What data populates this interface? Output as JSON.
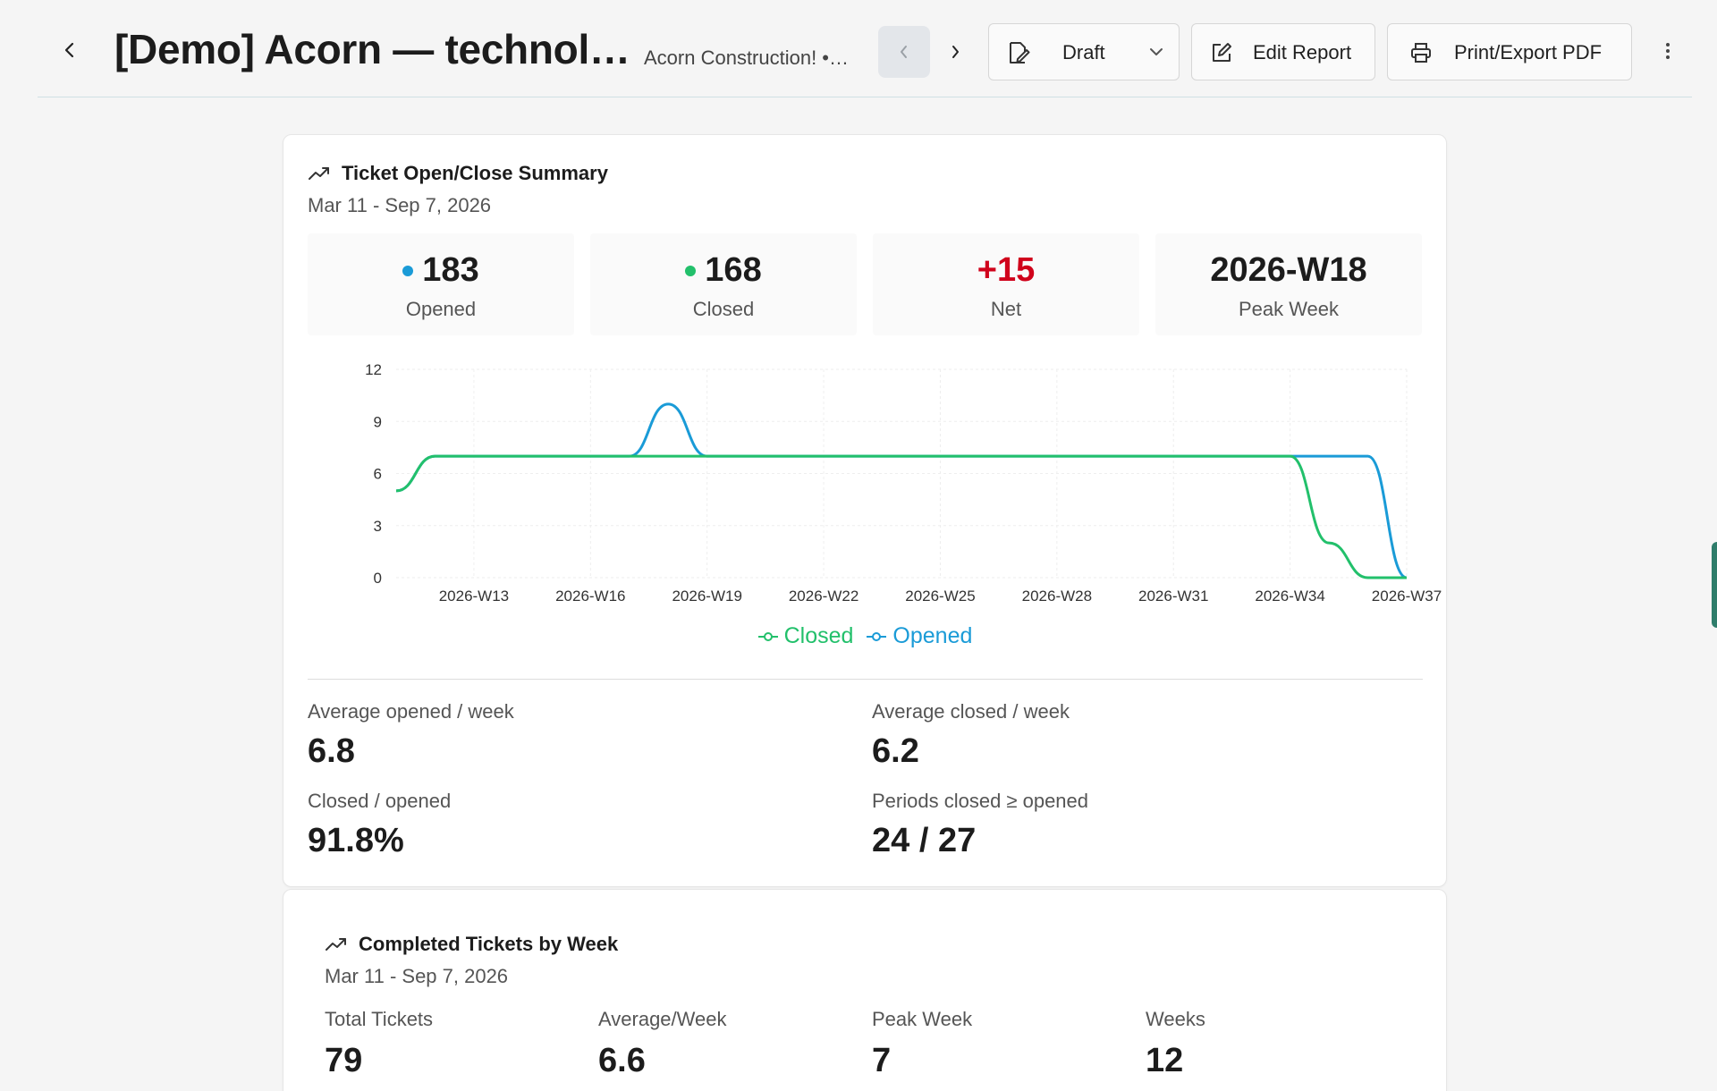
{
  "header": {
    "title": "[Demo] Acorn — technol…",
    "subtitle": "Acorn Construction! •…",
    "status_label": "Draft",
    "edit_label": "Edit Report",
    "print_label": "Print/Export PDF"
  },
  "summary": {
    "title": "Ticket Open/Close Summary",
    "date_range": "Mar 11 - Sep 7, 2026",
    "kpis": [
      {
        "value": "183",
        "label": "Opened",
        "dot_color": "#1a9bd7"
      },
      {
        "value": "168",
        "label": "Closed",
        "dot_color": "#22c06b"
      },
      {
        "value": "+15",
        "label": "Net",
        "color": "#d0021b"
      },
      {
        "value": "2026-W18",
        "label": "Peak Week"
      }
    ],
    "legend": [
      {
        "name": "Closed",
        "color": "#22c06b"
      },
      {
        "name": "Opened",
        "color": "#1a9bd7"
      }
    ],
    "stats": {
      "avg_opened_label": "Average opened / week",
      "avg_opened_value": "6.8",
      "avg_closed_label": "Average closed / week",
      "avg_closed_value": "6.2",
      "ratio_label": "Closed / opened",
      "ratio_value": "91.8%",
      "periods_label": "Periods closed ≥ opened",
      "periods_value": "24 / 27"
    }
  },
  "chart_data": {
    "type": "line",
    "x": [
      "2026-W11",
      "2026-W12",
      "2026-W13",
      "2026-W14",
      "2026-W15",
      "2026-W16",
      "2026-W17",
      "2026-W18",
      "2026-W19",
      "2026-W20",
      "2026-W21",
      "2026-W22",
      "2026-W23",
      "2026-W24",
      "2026-W25",
      "2026-W26",
      "2026-W27",
      "2026-W28",
      "2026-W29",
      "2026-W30",
      "2026-W31",
      "2026-W32",
      "2026-W33",
      "2026-W34",
      "2026-W35",
      "2026-W36",
      "2026-W37"
    ],
    "x_tick_labels": [
      "2026-W13",
      "2026-W16",
      "2026-W19",
      "2026-W22",
      "2026-W25",
      "2026-W28",
      "2026-W31",
      "2026-W34",
      "2026-W37"
    ],
    "series": [
      {
        "name": "Closed",
        "color": "#22c06b",
        "values": [
          5,
          7,
          7,
          7,
          7,
          7,
          7,
          7,
          7,
          7,
          7,
          7,
          7,
          7,
          7,
          7,
          7,
          7,
          7,
          7,
          7,
          7,
          7,
          7,
          2,
          0,
          0
        ]
      },
      {
        "name": "Opened",
        "color": "#1a9bd7",
        "values": [
          5,
          7,
          7,
          7,
          7,
          7,
          7,
          10,
          7,
          7,
          7,
          7,
          7,
          7,
          7,
          7,
          7,
          7,
          7,
          7,
          7,
          7,
          7,
          7,
          7,
          7,
          0
        ]
      }
    ],
    "yticks": [
      0,
      3,
      6,
      9,
      12
    ],
    "ylim": [
      0,
      12
    ],
    "grid": true,
    "legend_position": "bottom"
  },
  "completed": {
    "title": "Completed Tickets by Week",
    "date_range": "Mar 11 - Sep 7, 2026",
    "stats": [
      {
        "label": "Total Tickets",
        "value": "79"
      },
      {
        "label": "Average/Week",
        "value": "6.6"
      },
      {
        "label": "Peak Week",
        "value": "7"
      },
      {
        "label": "Weeks",
        "value": "12"
      }
    ]
  }
}
